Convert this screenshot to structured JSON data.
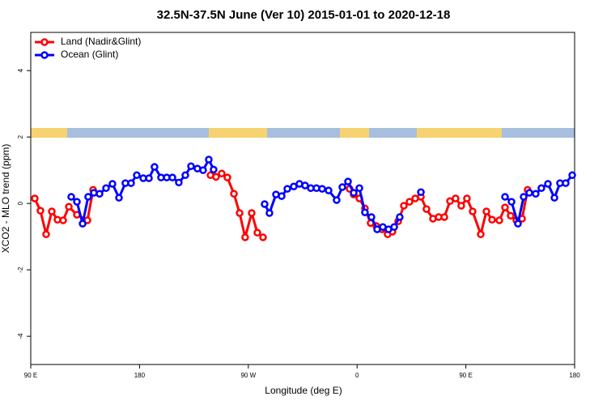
{
  "chart_data": {
    "type": "line",
    "title": "32.5N-37.5N June (Ver 10)   2015-01-01 to 2020-12-18",
    "x_label": "Longitude (deg E)",
    "y_label": "XCO2 - MLO trend (ppm)",
    "xlim": [
      90,
      540
    ],
    "ylim": [
      -4.85,
      5.15
    ],
    "xticks": [
      {
        "value": 90,
        "label": "90 E"
      },
      180,
      {
        "value": 270,
        "label": "90 W"
      },
      {
        "value": 360,
        "label": "0"
      },
      {
        "value": 450,
        "label": "90 E"
      },
      {
        "value": 540,
        "label": "180"
      }
    ],
    "yticks": [
      -4,
      -2,
      0,
      2,
      4
    ],
    "legend": "top-left",
    "series": [
      {
        "name": "Land (Nadir&Glint)",
        "color": "#ff0000",
        "x": [
          93.3,
          98,
          102.7,
          107.4,
          112.1,
          116.8,
          121.5,
          128.2,
          136.9,
          141.6,
          null,
          238.7,
          243.3,
          248,
          252.7,
          258.1,
          262.8,
          267.4,
          272.8,
          277.5,
          282.2,
          null,
          353.8,
          357.2,
          361.9,
          366.5,
          371.2,
          375.9,
          380.6,
          385.3,
          389.3,
          394,
          398.7,
          403.4,
          408.1,
          412.8,
          417.4,
          422.8,
          427.5,
          432.2,
          436.9,
          441.5,
          446.2,
          450.9,
          455.6,
          462.3,
          467,
          471.7,
          477.7,
          482.4,
          487.1,
          491.8,
          496.5,
          501.1
        ],
        "values": [
          0.15,
          -0.22,
          -0.93,
          -0.24,
          -0.49,
          -0.51,
          -0.1,
          -0.34,
          -0.51,
          0.41,
          null,
          0.85,
          0.8,
          0.9,
          0.78,
          0.29,
          -0.29,
          -1.02,
          -0.29,
          -0.88,
          -1.02,
          null,
          0.44,
          0.27,
          0.15,
          -0.15,
          -0.59,
          -0.68,
          -0.78,
          -0.93,
          -0.85,
          -0.54,
          -0.07,
          0.05,
          0.15,
          0.2,
          -0.17,
          -0.46,
          -0.41,
          -0.41,
          0.07,
          0.15,
          -0.07,
          0.15,
          -0.24,
          -0.93,
          -0.24,
          -0.49,
          -0.51,
          -0.12,
          -0.37,
          -0.51,
          -0.46,
          0.41
        ]
      },
      {
        "name": "Ocean (Glint)",
        "color": "#0000ff",
        "x": [
          123.5,
          128.2,
          132.9,
          137.5,
          142.2,
          146.9,
          152.3,
          157.6,
          163,
          168.3,
          173,
          177.7,
          183.1,
          187.8,
          192.4,
          197.8,
          202.5,
          207.2,
          212.5,
          217.9,
          222.6,
          227.9,
          232.6,
          237.3,
          241.3,
          null,
          283.5,
          287.5,
          292.9,
          297.6,
          302.3,
          307.6,
          312.3,
          317,
          321.7,
          326.4,
          331.1,
          336.4,
          343.1,
          347.8,
          352.5,
          357.2,
          361.9,
          366.5,
          371.9,
          376.6,
          381.3,
          386,
          390.7,
          395.3,
          null,
          412.8,
          null,
          482.4,
          487.8,
          493.1,
          497.8,
          502.5,
          507.8,
          512.5,
          517.9,
          523.3,
          527.9,
          532.6,
          538
        ],
        "values": [
          0.2,
          0.05,
          -0.61,
          0.2,
          0.32,
          0.29,
          0.46,
          0.59,
          0.17,
          0.61,
          0.61,
          0.85,
          0.76,
          0.76,
          1.1,
          0.78,
          0.78,
          0.78,
          0.63,
          0.85,
          1.12,
          1.05,
          1.0,
          1.32,
          1.02,
          null,
          -0.02,
          -0.29,
          0.27,
          0.22,
          0.44,
          0.51,
          0.59,
          0.54,
          0.46,
          0.46,
          0.44,
          0.39,
          0.1,
          0.49,
          0.66,
          0.32,
          0.46,
          -0.27,
          -0.41,
          -0.78,
          -0.71,
          -0.78,
          -0.71,
          -0.41,
          null,
          0.34,
          null,
          0.2,
          0.05,
          -0.61,
          0.2,
          0.32,
          0.29,
          0.46,
          0.59,
          0.17,
          0.61,
          0.61,
          0.85
        ]
      }
    ]
  }
}
